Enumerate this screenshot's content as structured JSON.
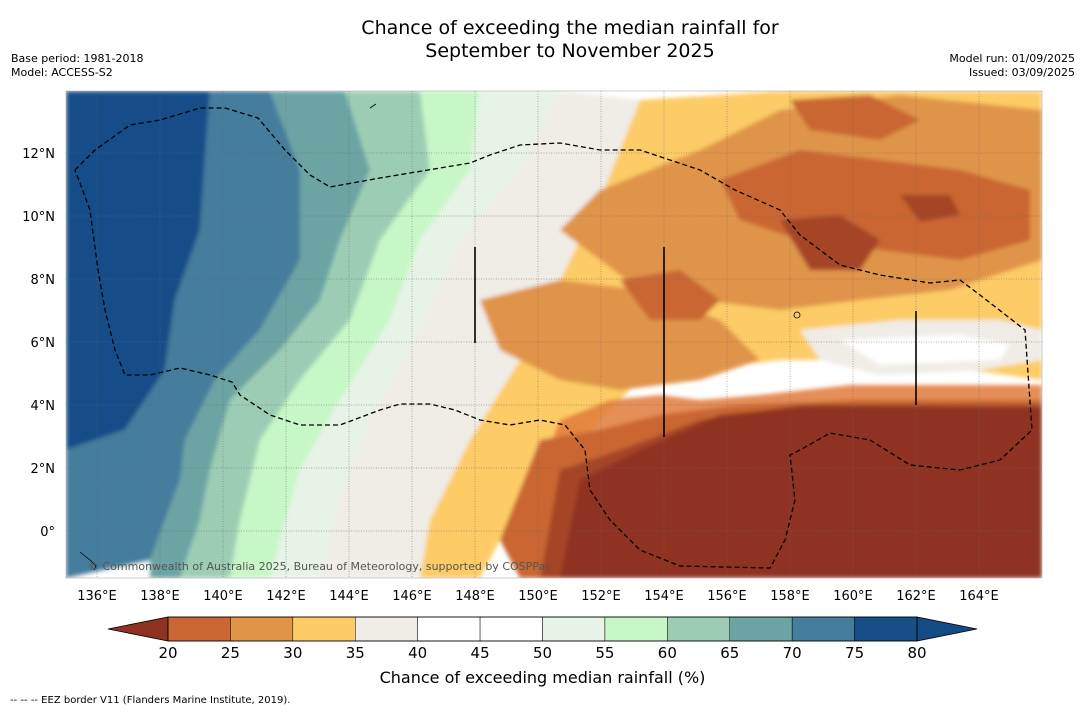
{
  "title_line1": "Chance of exceeding the median rainfall for",
  "title_line2": "September to November 2025",
  "meta_left": [
    "Base period: 1981-2018",
    "Model: ACCESS-S2"
  ],
  "meta_right": [
    "Model run: 01/09/2025",
    "Issued: 03/09/2025"
  ],
  "copyright": "© Commonwealth of Australia 2025, Bureau of Meteorology, supported by COSPPac",
  "lon_ticks": [
    "136°E",
    "138°E",
    "140°E",
    "142°E",
    "144°E",
    "146°E",
    "148°E",
    "150°E",
    "152°E",
    "154°E",
    "156°E",
    "158°E",
    "160°E",
    "162°E",
    "164°E"
  ],
  "lat_ticks": [
    "12°N",
    "10°N",
    "8°N",
    "6°N",
    "4°N",
    "2°N",
    "0°"
  ],
  "colorbar": {
    "label": "Chance of exceeding median rainfall (%)",
    "ticks": [
      "20",
      "25",
      "30",
      "35",
      "40",
      "45",
      "50",
      "55",
      "60",
      "65",
      "70",
      "75",
      "80"
    ],
    "colors": [
      "#a64426",
      "#c96633",
      "#e09448",
      "#fdcc66",
      "#f0ece6",
      "#ffffff",
      "#ffffff",
      "#e7f3e7",
      "#c7f7c7",
      "#9ccdb4",
      "#6ca4a4",
      "#457d9c",
      "#174e88"
    ],
    "under_color": "#8f3221",
    "over_color": "#154b85"
  },
  "legend_note": "-- -- -- EEZ border V11 (Flanders Marine Institute, 2019)."
}
